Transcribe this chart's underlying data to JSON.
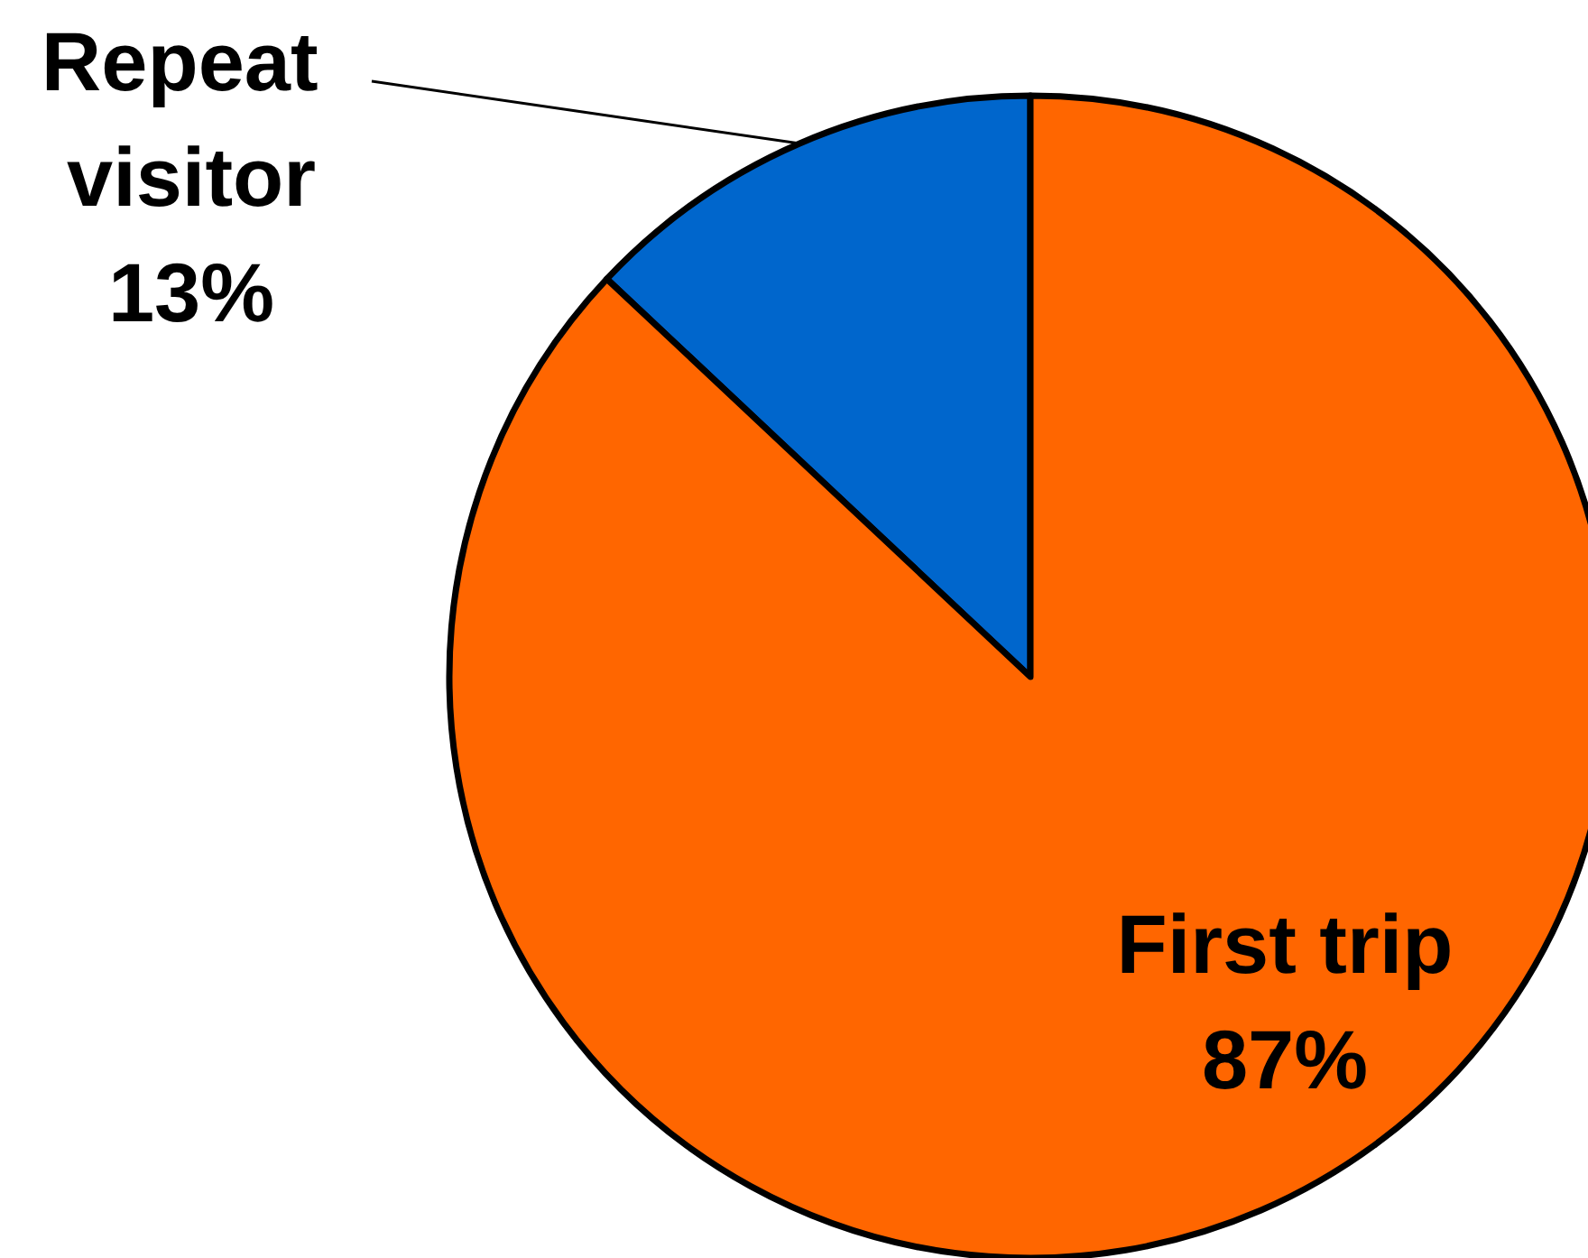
{
  "chart_data": {
    "type": "pie",
    "categories": [
      "Repeat visitor",
      "First trip"
    ],
    "values": [
      13,
      87
    ],
    "colors": [
      "#0066cc",
      "#ff6600"
    ],
    "value_labels": [
      "13%",
      "87%"
    ]
  }
}
